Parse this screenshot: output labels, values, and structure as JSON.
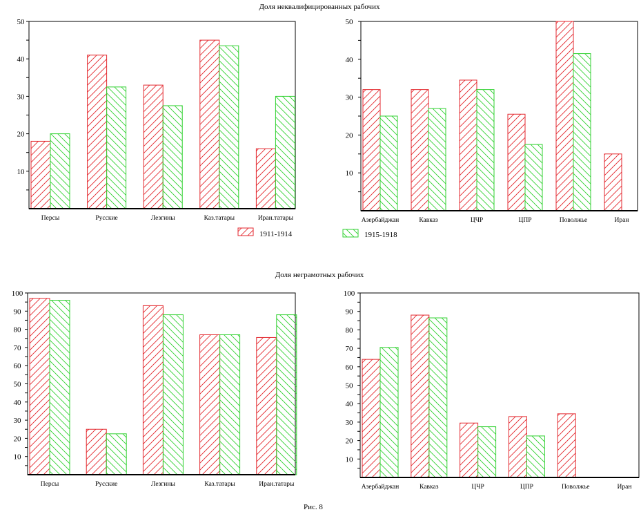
{
  "figure_caption": "Рис. 8",
  "legend": [
    "1911-1914",
    "1915-1918"
  ],
  "colors": {
    "series1": "#e3262c",
    "series2": "#2fd12f",
    "axis": "#000000",
    "baseline": "#7a3a00"
  },
  "chart_data": [
    {
      "type": "bar",
      "title": "Доля неквалифицированных рабочих",
      "categories": [
        "Персы",
        "Русские",
        "Лезгины",
        "Каз.татары",
        "Иран.татары"
      ],
      "series": [
        {
          "name": "1911-1914",
          "values": [
            18,
            41,
            33,
            45,
            16
          ]
        },
        {
          "name": "1915-1918",
          "values": [
            20,
            32.5,
            27.5,
            43.5,
            30
          ]
        }
      ],
      "ylim": [
        0,
        50
      ],
      "yticks": [
        10,
        20,
        30,
        40,
        50
      ]
    },
    {
      "type": "bar",
      "title": "",
      "categories": [
        "Азербайджан",
        "Кавказ",
        "ЦЧР",
        "ЦПР",
        "Поволжье",
        "Иран"
      ],
      "series": [
        {
          "name": "1911-1914",
          "values": [
            32,
            32,
            34.5,
            25.5,
            50,
            15
          ]
        },
        {
          "name": "1915-1918",
          "values": [
            25,
            27,
            32,
            17.5,
            41.5,
            null
          ]
        }
      ],
      "ylim": [
        0,
        50
      ],
      "yticks": [
        10,
        20,
        30,
        40,
        50
      ]
    },
    {
      "type": "bar",
      "title": "Доля неграмотных рабочих",
      "categories": [
        "Персы",
        "Русские",
        "Лезгины",
        "Каз.татары",
        "Иран.татары"
      ],
      "series": [
        {
          "name": "1911-1914",
          "values": [
            97,
            25,
            93,
            77,
            75.5
          ]
        },
        {
          "name": "1915-1918",
          "values": [
            96,
            22.5,
            88,
            77,
            88
          ]
        }
      ],
      "ylim": [
        0,
        100
      ],
      "yticks": [
        10,
        20,
        30,
        40,
        50,
        60,
        70,
        80,
        90,
        100
      ]
    },
    {
      "type": "bar",
      "title": "",
      "categories": [
        "Азербайджан",
        "Кавказ",
        "ЦЧР",
        "ЦПР",
        "Поволжье",
        "Иран"
      ],
      "series": [
        {
          "name": "1911-1914",
          "values": [
            64,
            88,
            29.5,
            33,
            34.5,
            null
          ]
        },
        {
          "name": "1915-1918",
          "values": [
            70.5,
            86.5,
            27.5,
            22.5,
            null,
            null
          ]
        }
      ],
      "ylim": [
        0,
        100
      ],
      "yticks": [
        10,
        20,
        30,
        40,
        50,
        60,
        70,
        80,
        90,
        100
      ]
    }
  ]
}
